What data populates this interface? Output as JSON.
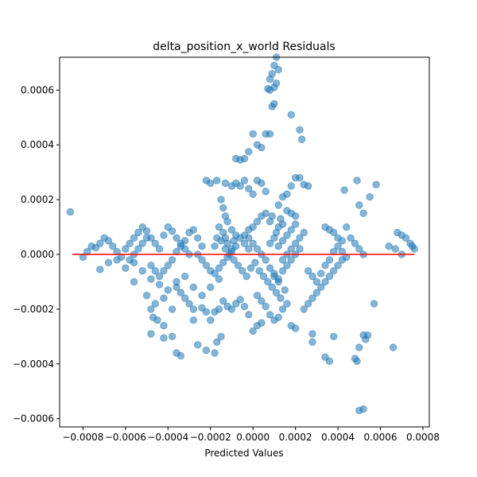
{
  "chart_data": {
    "type": "scatter",
    "title": "delta_position_x_world Residuals",
    "xlabel": "Predicted Values",
    "ylabel": "",
    "xlim": [
      -0.00091,
      0.00083
    ],
    "ylim": [
      -0.00063,
      0.00072
    ],
    "x_ticks": [
      -0.0008,
      -0.0006,
      -0.0004,
      -0.0002,
      0.0,
      0.0002,
      0.0004,
      0.0006,
      0.0008
    ],
    "x_tick_labels": [
      "−0.0008",
      "−0.0006",
      "−0.0004",
      "−0.0002",
      "0.0000",
      "0.0002",
      "0.0004",
      "0.0006",
      "0.0008"
    ],
    "y_ticks": [
      -0.0006,
      -0.0004,
      -0.0002,
      0.0,
      0.0002,
      0.0004,
      0.0006
    ],
    "y_tick_labels": [
      "−0.0006",
      "−0.0004",
      "−0.0002",
      "0.0000",
      "0.0002",
      "0.0004",
      "0.0006"
    ],
    "grid": false,
    "point_color": "#1f77b4",
    "point_alpha": 0.55,
    "reference_line": {
      "y": 0.0,
      "x_start": -0.00085,
      "x_end": 0.00076,
      "color": "#ff0000"
    },
    "points": [
      [
        -0.00086,
        0.000155
      ],
      [
        -0.0008,
        -1e-05
      ],
      [
        -0.00078,
        1e-05
      ],
      [
        -0.00076,
        3e-05
      ],
      [
        -0.00074,
        2.5e-05
      ],
      [
        -0.00072,
        4e-05
      ],
      [
        -0.0007,
        6e-05
      ],
      [
        -0.00068,
        5e-05
      ],
      [
        -0.00066,
        3e-05
      ],
      [
        -0.00064,
        1e-05
      ],
      [
        -0.00062,
        -1e-05
      ],
      [
        -0.0006,
        2e-05
      ],
      [
        -0.00058,
        4e-05
      ],
      [
        -0.00056,
        6e-05
      ],
      [
        -0.00054,
        8e-05
      ],
      [
        -0.00052,
        0.0001
      ],
      [
        -0.0005,
        8.5e-05
      ],
      [
        -0.00048,
        6e-05
      ],
      [
        -0.00046,
        4e-05
      ],
      [
        -0.00044,
        2e-05
      ],
      [
        -0.00042,
        7e-05
      ],
      [
        -0.0004,
        0.0001
      ],
      [
        -0.00038,
        8.5e-05
      ],
      [
        -0.00036,
        6e-05
      ],
      [
        -0.00034,
        3e-05
      ],
      [
        -0.00032,
        5e-05
      ],
      [
        -0.0003,
        8e-05
      ],
      [
        -0.00028,
        9e-05
      ],
      [
        -0.00026,
        6e-05
      ],
      [
        -0.00024,
        3e-05
      ],
      [
        -0.00072,
        -5.5e-05
      ],
      [
        -0.00068,
        -3e-05
      ],
      [
        -0.00064,
        -2e-05
      ],
      [
        -0.0006,
        -5e-05
      ],
      [
        -0.00056,
        -3e-05
      ],
      [
        -0.00052,
        -6e-05
      ],
      [
        -0.00048,
        -9e-05
      ],
      [
        -0.00044,
        -0.00011
      ],
      [
        -0.0004,
        -0.00013
      ],
      [
        -0.00036,
        -0.0001
      ],
      [
        -0.00032,
        -8e-05
      ],
      [
        -0.00028,
        -0.00012
      ],
      [
        -0.00024,
        -0.00015
      ],
      [
        -0.0002,
        -0.00012
      ],
      [
        -0.00016,
        -9e-05
      ],
      [
        -0.00056,
        -0.0001
      ],
      [
        -0.0005,
        -0.00015
      ],
      [
        -0.00046,
        -0.00018
      ],
      [
        -0.00042,
        -0.00016
      ],
      [
        -0.00038,
        -0.0002
      ],
      [
        -0.00048,
        -0.0002
      ],
      [
        -0.00047,
        -0.00023
      ],
      [
        -0.00045,
        -0.00024
      ],
      [
        -0.00042,
        -0.00026
      ],
      [
        -0.00038,
        -0.0003
      ],
      [
        -0.00048,
        -0.00029
      ],
      [
        -0.00042,
        -0.000305
      ],
      [
        -0.00036,
        -0.00036
      ],
      [
        -0.00034,
        -0.00037
      ],
      [
        -0.00028,
        -0.00024
      ],
      [
        -0.00026,
        -0.00033
      ],
      [
        -0.00022,
        -0.00035
      ],
      [
        -0.00018,
        -0.00036
      ],
      [
        -0.00017,
        -0.00032
      ],
      [
        -0.00015,
        -0.0003
      ],
      [
        -0.00024,
        -0.000195
      ],
      [
        -0.00022,
        -0.00021
      ],
      [
        -0.0002,
        -0.00024
      ],
      [
        -0.00018,
        -0.00021
      ],
      [
        -0.00016,
        -0.0002
      ],
      [
        -0.00014,
        -0.00017
      ],
      [
        -0.00012,
        -0.00019
      ],
      [
        -0.0001,
        -0.0002
      ],
      [
        -8e-05,
        -0.00018
      ],
      [
        -6e-05,
        -0.000165
      ],
      [
        -4e-05,
        -0.00019
      ],
      [
        -2e-05,
        -0.00022
      ],
      [
        0.0,
        -0.00028
      ],
      [
        2e-05,
        -0.00026
      ],
      [
        4e-05,
        -0.00025
      ],
      [
        -0.00022,
        0.00027
      ],
      [
        -0.0002,
        0.00026
      ],
      [
        -0.00017,
        0.00027
      ],
      [
        -0.00013,
        0.00026
      ],
      [
        -0.0001,
        0.00025
      ],
      [
        -8e-05,
        0.00026
      ],
      [
        -6e-05,
        0.00025
      ],
      [
        -4e-05,
        0.00027
      ],
      [
        -2e-05,
        0.00024
      ],
      [
        0.0,
        0.00022
      ],
      [
        -0.00015,
        0.0002
      ],
      [
        -0.00014,
        0.00017
      ],
      [
        -0.00013,
        0.00014
      ],
      [
        -0.00012,
        0.00012
      ],
      [
        -0.0001,
        9e-05
      ],
      [
        -8e-05,
        0.00035
      ],
      [
        -6e-05,
        0.000345
      ],
      [
        -4e-05,
        0.00035
      ],
      [
        -2e-05,
        0.000375
      ],
      [
        0.0,
        0.00044
      ],
      [
        2e-05,
        0.0004
      ],
      [
        4e-05,
        0.00039
      ],
      [
        6e-05,
        0.00044
      ],
      [
        8e-05,
        0.0006
      ],
      [
        0.0001,
        0.00061
      ],
      [
        7e-05,
        0.000605
      ],
      [
        8e-05,
        0.00064
      ],
      [
        9e-05,
        0.00066
      ],
      [
        0.0001,
        0.00069
      ],
      [
        0.00011,
        0.00072
      ],
      [
        0.00012,
        0.000675
      ],
      [
        0.00011,
        0.000625
      ],
      [
        0.0001,
        0.00055
      ],
      [
        9e-05,
        0.00054
      ],
      [
        8e-05,
        0.00044
      ],
      [
        0.00018,
        0.00051
      ],
      [
        0.00022,
        0.000455
      ],
      [
        0.00023,
        0.00042
      ],
      [
        0.0002,
        0.00028
      ],
      [
        0.00022,
        0.00028
      ],
      [
        0.00024,
        0.000255
      ],
      [
        0.00026,
        0.00025
      ],
      [
        0.00018,
        0.00025
      ],
      [
        0.00016,
        0.00022
      ],
      [
        0.00014,
        0.00021
      ],
      [
        0.00012,
        0.00018
      ],
      [
        0.00016,
        0.00016
      ],
      [
        0.00018,
        0.00015
      ],
      [
        0.0002,
        0.00014
      ],
      [
        0.00014,
        0.00011
      ],
      [
        0.00013,
        0.00013
      ],
      [
        0.00012,
        0.0001
      ],
      [
        0.00011,
        8e-05
      ],
      [
        0.0001,
        6e-05
      ],
      [
        8e-05,
        4e-05
      ],
      [
        -0.00016,
        0.0001
      ],
      [
        -0.00014,
        8e-05
      ],
      [
        -0.00013,
        6e-05
      ],
      [
        -0.00012,
        4e-05
      ],
      [
        -0.0001,
        2e-05
      ],
      [
        -9e-05,
        5e-05
      ],
      [
        -8e-05,
        7e-05
      ],
      [
        -6e-05,
        6e-05
      ],
      [
        -4e-05,
        4e-05
      ],
      [
        -2e-05,
        2e-05
      ],
      [
        -0.00018,
        3e-05
      ],
      [
        -0.00017,
        6e-05
      ],
      [
        -0.00015,
        5e-05
      ],
      [
        -0.00013,
        2e-05
      ],
      [
        -0.00011,
        0.0
      ],
      [
        -9e-05,
        -2e-05
      ],
      [
        -7e-05,
        -4e-05
      ],
      [
        -5e-05,
        -6e-05
      ],
      [
        -3e-05,
        -8e-05
      ],
      [
        -1e-05,
        -5e-05
      ],
      [
        1e-05,
        -3e-05
      ],
      [
        3e-05,
        -6e-05
      ],
      [
        5e-05,
        -8e-05
      ],
      [
        7e-05,
        -0.0001
      ],
      [
        9e-05,
        -0.00012
      ],
      [
        0.00011,
        -0.00014
      ],
      [
        0.00013,
        -0.00016
      ],
      [
        0.00015,
        -0.00013
      ],
      [
        0.00012,
        -0.0001
      ],
      [
        0.0001,
        -8e-05
      ],
      [
        2e-05,
        -0.00015
      ],
      [
        4e-05,
        -0.00017
      ],
      [
        6e-05,
        -0.00019
      ],
      [
        8e-05,
        -0.00022
      ],
      [
        0.0001,
        -0.00024
      ],
      [
        0.00012,
        -0.00023
      ],
      [
        0.00014,
        -0.0002
      ],
      [
        0.00016,
        -0.00018
      ],
      [
        0.00018,
        -0.00026
      ],
      [
        0.0002,
        -0.00027
      ],
      [
        0.00024,
        -0.0002
      ],
      [
        0.00026,
        -0.00018
      ],
      [
        0.00028,
        -0.00016
      ],
      [
        0.0003,
        -0.00014
      ],
      [
        0.00032,
        -0.00012
      ],
      [
        0.00034,
        -0.0001
      ],
      [
        0.00036,
        -8e-05
      ],
      [
        0.00038,
        -6e-05
      ],
      [
        0.0004,
        -4e-05
      ],
      [
        0.00042,
        -2e-05
      ],
      [
        0.00028,
        -0.00029
      ],
      [
        0.00028,
        -0.00032
      ],
      [
        0.00034,
        -0.000375
      ],
      [
        0.00036,
        -0.00039
      ],
      [
        0.00038,
        -0.0003
      ],
      [
        0.00034,
        0.0001
      ],
      [
        0.00036,
        9e-05
      ],
      [
        0.00038,
        8e-05
      ],
      [
        0.0004,
        6e-05
      ],
      [
        0.00042,
        5e-05
      ],
      [
        0.00044,
        0.0001
      ],
      [
        0.00046,
        6e-05
      ],
      [
        0.00048,
        4e-05
      ],
      [
        0.0005,
        2e-05
      ],
      [
        0.00052,
        0.0
      ],
      [
        0.00043,
        0.000235
      ],
      [
        0.00049,
        0.00027
      ],
      [
        0.0005,
        0.00018
      ],
      [
        0.00052,
        0.00015
      ],
      [
        0.00055,
        0.00021
      ],
      [
        0.00058,
        0.000255
      ],
      [
        0.0005,
        -0.00034
      ],
      [
        0.00048,
        -0.00038
      ],
      [
        0.00049,
        -0.00039
      ],
      [
        0.00052,
        -0.000295
      ],
      [
        0.00053,
        -0.00031
      ],
      [
        0.00054,
        -0.000295
      ],
      [
        0.0005,
        -0.00057
      ],
      [
        0.00052,
        -0.000565
      ],
      [
        0.00057,
        -0.00018
      ],
      [
        0.00066,
        -0.00034
      ],
      [
        0.00068,
        8e-05
      ],
      [
        0.0007,
        7e-05
      ],
      [
        0.00072,
        6e-05
      ],
      [
        0.00074,
        4e-05
      ],
      [
        0.00075,
        3e-05
      ],
      [
        0.00076,
        2e-05
      ],
      [
        0.0007,
        0.0
      ],
      [
        0.00067,
        2e-05
      ],
      [
        0.00064,
        3e-05
      ],
      [
        -4e-05,
        7e-05
      ],
      [
        -2e-05,
        6e-05
      ],
      [
        0.0,
        4e-05
      ],
      [
        2e-05,
        2e-05
      ],
      [
        4e-05,
        0.0
      ],
      [
        6e-05,
        -2e-05
      ],
      [
        8e-05,
        -5e-05
      ],
      [
        0.0001,
        -7e-05
      ],
      [
        0.00012,
        -9e-05
      ],
      [
        0.00014,
        -6e-05
      ],
      [
        0.00016,
        -4e-05
      ],
      [
        0.00018,
        -2e-05
      ],
      [
        0.0002,
        0.0
      ],
      [
        0.00022,
        2e-05
      ],
      [
        0.00024,
        8e-05
      ],
      [
        -0.00026,
        0.0
      ],
      [
        -0.00024,
        -2e-05
      ],
      [
        -0.00022,
        -4e-05
      ],
      [
        -0.0002,
        -6e-05
      ],
      [
        -0.00018,
        -7e-05
      ],
      [
        -0.00016,
        -5e-05
      ],
      [
        -0.00014,
        -3e-05
      ],
      [
        -0.00012,
        -1e-05
      ],
      [
        -0.0001,
        1e-05
      ],
      [
        -8e-05,
        3e-05
      ],
      [
        -0.00036,
        -0.00012
      ],
      [
        -0.00034,
        -0.00014
      ],
      [
        -0.00032,
        -0.00016
      ],
      [
        -0.0003,
        -0.00018
      ],
      [
        -0.00028,
        -0.0002
      ],
      [
        -0.0003,
        0.0
      ],
      [
        -0.00032,
        2e-05
      ],
      [
        -0.00034,
        4e-05
      ],
      [
        -0.00036,
        1e-05
      ],
      [
        -0.00038,
        -2e-05
      ],
      [
        -0.0004,
        -4e-05
      ],
      [
        -0.00042,
        -6e-05
      ],
      [
        -0.00044,
        -8e-05
      ],
      [
        -0.00046,
        -6e-05
      ],
      [
        -0.00048,
        -4e-05
      ],
      [
        -0.0005,
        6e-05
      ],
      [
        -0.00052,
        4e-05
      ],
      [
        -0.00054,
        2e-05
      ],
      [
        -0.00056,
        0.0
      ],
      [
        -0.00058,
        -2e-05
      ],
      [
        0.00026,
        -6e-05
      ],
      [
        0.00028,
        -8e-05
      ],
      [
        0.0003,
        -0.0001
      ],
      [
        0.00032,
        -7e-05
      ],
      [
        0.00034,
        -4e-05
      ],
      [
        0.00036,
        -2e-05
      ],
      [
        0.00038,
        1e-05
      ],
      [
        0.0004,
        3e-05
      ],
      [
        0.00042,
        1e-05
      ],
      [
        0.00044,
        -1e-05
      ],
      [
        0.00012,
        3e-05
      ],
      [
        0.00014,
        5e-05
      ],
      [
        0.00016,
        7e-05
      ],
      [
        0.00018,
        9e-05
      ],
      [
        0.0002,
        0.00011
      ],
      [
        0.00022,
        6e-05
      ],
      [
        0.0002,
        4e-05
      ],
      [
        0.00018,
        2e-05
      ],
      [
        0.00016,
        0.0
      ],
      [
        0.00014,
        -2e-05
      ],
      [
        6e-05,
        0.00015
      ],
      [
        4e-05,
        0.00014
      ],
      [
        2e-05,
        0.00012
      ],
      [
        0.0,
        0.0001
      ],
      [
        -2e-05,
        9e-05
      ],
      [
        8e-05,
        0.00012
      ],
      [
        9e-05,
        0.00014
      ],
      [
        4e-05,
        0.00026
      ],
      [
        2e-05,
        0.00027
      ],
      [
        6e-05,
        0.00023
      ]
    ]
  }
}
